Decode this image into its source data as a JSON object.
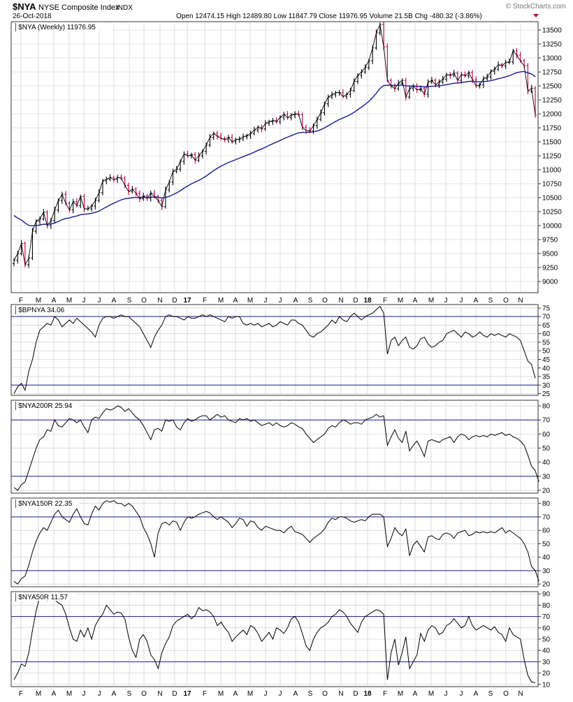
{
  "header": {
    "symbol": "$NYA",
    "name": "NYSE Composite Index",
    "exchange": "INDX",
    "date": "26-Oct-2018",
    "stats": "Open 12474.15   High 12489.80   Low 11847.79   Close 11976.95   Volume 21.5B   Chg -480.32 (-3.86%)",
    "watermark": "© StockCharts.com",
    "down_arrow_color": "#c00040"
  },
  "colors": {
    "price_up": "#000000",
    "price_down": "#c0003c",
    "moving_average": "#1a1a8c",
    "reference_lines": "#1a1a8c",
    "indicator_line": "#000000",
    "grid": "#c8c8c8"
  },
  "x_axis": {
    "months": [
      "F",
      "M",
      "A",
      "M",
      "J",
      "J",
      "A",
      "S",
      "O",
      "N",
      "D",
      "17",
      "F",
      "M",
      "A",
      "M",
      "J",
      "J",
      "A",
      "S",
      "O",
      "N",
      "D",
      "18",
      "F",
      "M",
      "A",
      "M",
      "J",
      "J",
      "A",
      "S",
      "O",
      "N"
    ],
    "bold_labels": [
      "17",
      "18"
    ]
  },
  "chart_data": [
    {
      "type": "ohlc",
      "id": "price",
      "legend": "$NYA (Weekly) 11976.95",
      "ylim": [
        8800,
        13650
      ],
      "ticks": [
        9000,
        9250,
        9500,
        9750,
        10000,
        10250,
        10500,
        10750,
        11000,
        11250,
        11500,
        11750,
        12000,
        12250,
        12500,
        12750,
        13000,
        13250,
        13500
      ],
      "close": [
        9380,
        9500,
        9680,
        9300,
        9420,
        9900,
        10080,
        10120,
        10240,
        10000,
        10090,
        10280,
        10450,
        10560,
        10400,
        10280,
        10430,
        10360,
        10520,
        10300,
        10300,
        10350,
        10450,
        10590,
        10800,
        10830,
        10860,
        10820,
        10860,
        10850,
        10720,
        10610,
        10650,
        10580,
        10480,
        10530,
        10490,
        10580,
        10520,
        10450,
        10340,
        10640,
        10780,
        10970,
        11010,
        11150,
        11280,
        11250,
        11270,
        11170,
        11250,
        11330,
        11440,
        11580,
        11650,
        11600,
        11560,
        11540,
        11580,
        11500,
        11540,
        11550,
        11590,
        11610,
        11650,
        11710,
        11760,
        11730,
        11830,
        11860,
        11880,
        11860,
        11940,
        11990,
        11930,
        11980,
        12000,
        11990,
        11760,
        11700,
        11690,
        11790,
        11900,
        12020,
        12180,
        12300,
        12340,
        12380,
        12380,
        12310,
        12350,
        12420,
        12580,
        12690,
        12750,
        12830,
        12950,
        13180,
        13450,
        13600,
        13200,
        12600,
        12500,
        12450,
        12550,
        12600,
        12300,
        12450,
        12500,
        12430,
        12450,
        12350,
        12570,
        12600,
        12520,
        12570,
        12620,
        12700,
        12690,
        12730,
        12600,
        12700,
        12680,
        12740,
        12610,
        12500,
        12520,
        12630,
        12660,
        12760,
        12800,
        12880,
        12860,
        12920,
        12930,
        13130,
        13050,
        12950,
        12860,
        12410,
        12460,
        11977
      ],
      "ma_periods": 40,
      "ma_start": 10240
    },
    {
      "type": "line",
      "id": "bpnya",
      "legend": "$BPNYA 34.06",
      "ylim": [
        24,
        77
      ],
      "ticks": [
        25,
        30,
        35,
        40,
        45,
        50,
        55,
        60,
        65,
        70,
        75
      ],
      "reference_lines": [
        30,
        70
      ],
      "values": [
        25,
        29,
        31,
        27,
        38,
        45,
        55,
        62,
        64,
        66,
        65,
        70,
        68,
        64,
        66,
        68,
        66,
        69,
        67,
        65,
        63,
        61,
        58,
        65,
        69,
        70,
        70,
        69,
        70,
        71,
        70,
        70,
        68,
        66,
        64,
        60,
        56,
        52,
        58,
        62,
        65,
        70,
        71,
        70,
        70,
        69,
        68,
        70,
        69,
        69,
        70,
        71,
        70,
        71,
        70,
        69,
        68,
        67,
        70,
        69,
        70,
        70,
        66,
        65,
        66,
        65,
        66,
        64,
        65,
        66,
        64,
        65,
        67,
        66,
        65,
        68,
        68,
        66,
        65,
        62,
        59,
        58,
        60,
        61,
        63,
        65,
        68,
        66,
        70,
        68,
        67,
        70,
        72,
        70,
        68,
        70,
        71,
        72,
        74,
        76,
        72,
        48,
        56,
        58,
        53,
        56,
        58,
        52,
        51,
        53,
        57,
        58,
        54,
        52,
        53,
        55,
        56,
        60,
        61,
        62,
        60,
        58,
        61,
        60,
        58,
        59,
        61,
        59,
        58,
        60,
        59,
        60,
        59,
        58,
        60,
        59,
        58,
        56,
        50,
        44,
        42,
        34
      ]
    },
    {
      "type": "line",
      "id": "nya200r",
      "legend": "$NYA200R 25.94",
      "ylim": [
        18,
        84
      ],
      "ticks": [
        20,
        30,
        40,
        50,
        60,
        70,
        80
      ],
      "reference_lines": [
        30,
        70
      ],
      "values": [
        22,
        20,
        24,
        26,
        34,
        42,
        50,
        56,
        58,
        63,
        62,
        70,
        66,
        65,
        68,
        71,
        70,
        68,
        70,
        65,
        61,
        70,
        72,
        71,
        75,
        78,
        77,
        78,
        80,
        79,
        76,
        78,
        75,
        72,
        70,
        66,
        61,
        56,
        63,
        64,
        62,
        70,
        69,
        70,
        65,
        63,
        68,
        71,
        69,
        70,
        72,
        73,
        73,
        70,
        72,
        74,
        72,
        73,
        70,
        69,
        68,
        71,
        70,
        71,
        69,
        70,
        68,
        66,
        67,
        68,
        66,
        68,
        66,
        65,
        66,
        68,
        67,
        65,
        64,
        60,
        57,
        54,
        56,
        58,
        60,
        64,
        66,
        65,
        68,
        70,
        69,
        67,
        68,
        68,
        67,
        70,
        71,
        72,
        74,
        72,
        73,
        52,
        58,
        63,
        57,
        54,
        62,
        48,
        52,
        55,
        50,
        44,
        55,
        56,
        55,
        54,
        56,
        57,
        58,
        54,
        58,
        60,
        59,
        56,
        58,
        59,
        58,
        59,
        58,
        60,
        59,
        60,
        61,
        59,
        60,
        58,
        57,
        55,
        52,
        45,
        37,
        34,
        26
      ]
    },
    {
      "type": "line",
      "id": "nya150r",
      "legend": "$NYA150R 22.35",
      "ylim": [
        18,
        84
      ],
      "ticks": [
        20,
        30,
        40,
        50,
        60,
        70,
        80
      ],
      "reference_lines": [
        30,
        70
      ],
      "values": [
        22,
        20,
        24,
        26,
        34,
        44,
        52,
        58,
        62,
        60,
        66,
        72,
        75,
        70,
        68,
        66,
        72,
        76,
        70,
        65,
        64,
        72,
        78,
        75,
        80,
        82,
        81,
        82,
        80,
        80,
        78,
        80,
        78,
        74,
        70,
        62,
        57,
        50,
        40,
        58,
        65,
        66,
        64,
        67,
        66,
        60,
        66,
        70,
        69,
        70,
        72,
        73,
        74,
        73,
        70,
        68,
        70,
        68,
        66,
        62,
        65,
        69,
        68,
        63,
        67,
        66,
        62,
        60,
        63,
        62,
        61,
        60,
        60,
        58,
        61,
        63,
        59,
        58,
        57,
        54,
        51,
        54,
        56,
        58,
        61,
        66,
        69,
        68,
        70,
        70,
        69,
        67,
        66,
        67,
        68,
        67,
        70,
        72,
        72,
        72,
        70,
        48,
        54,
        62,
        58,
        56,
        61,
        41,
        49,
        52,
        48,
        44,
        55,
        56,
        54,
        53,
        57,
        58,
        57,
        54,
        58,
        59,
        60,
        56,
        57,
        59,
        58,
        59,
        58,
        59,
        58,
        60,
        62,
        58,
        60,
        58,
        56,
        54,
        50,
        44,
        33,
        30,
        22
      ]
    },
    {
      "type": "line",
      "id": "nya50r",
      "legend": "$NYA50R 11.57",
      "ylim": [
        8,
        92
      ],
      "ticks": [
        10,
        20,
        30,
        40,
        50,
        60,
        70,
        80,
        90
      ],
      "reference_lines": [
        30,
        70
      ],
      "values": [
        14,
        20,
        28,
        26,
        38,
        58,
        75,
        88,
        86,
        84,
        88,
        85,
        82,
        80,
        72,
        60,
        50,
        48,
        58,
        52,
        60,
        50,
        62,
        68,
        72,
        80,
        76,
        72,
        74,
        73,
        68,
        52,
        40,
        34,
        50,
        54,
        48,
        36,
        32,
        24,
        38,
        46,
        52,
        62,
        66,
        68,
        70,
        72,
        68,
        71,
        78,
        75,
        76,
        74,
        70,
        62,
        65,
        60,
        56,
        48,
        52,
        55,
        58,
        54,
        62,
        60,
        55,
        48,
        52,
        56,
        50,
        60,
        58,
        55,
        60,
        68,
        70,
        65,
        55,
        44,
        40,
        50,
        56,
        60,
        62,
        65,
        70,
        72,
        76,
        74,
        70,
        64,
        60,
        56,
        65,
        70,
        72,
        74,
        76,
        75,
        72,
        14,
        38,
        50,
        27,
        38,
        52,
        24,
        30,
        36,
        55,
        48,
        58,
        62,
        60,
        54,
        56,
        62,
        64,
        68,
        64,
        60,
        62,
        70,
        62,
        58,
        60,
        62,
        60,
        58,
        61,
        56,
        54,
        48,
        60,
        54,
        52,
        50,
        32,
        18,
        12,
        11.57
      ]
    }
  ]
}
